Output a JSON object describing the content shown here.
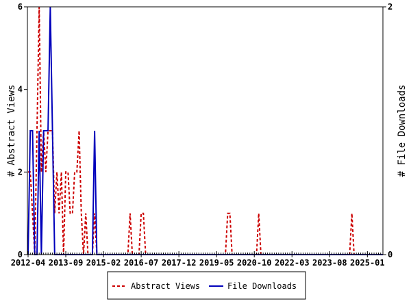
{
  "chart_data": {
    "type": "line",
    "x_start": "2012-04",
    "x_end": "2025-08",
    "x_interval": "month",
    "x_tick_labels": [
      "2012-04",
      "2013-09",
      "2015-02",
      "2016-07",
      "2017-12",
      "2019-05",
      "2020-10",
      "2022-03",
      "2023-08",
      "2025-01"
    ],
    "ylabel": "# Abstract Views",
    "ylabel_right": "# File Downloads",
    "ylim": [
      0,
      6
    ],
    "ylim_right": [
      0,
      2
    ],
    "y_ticks": [
      "0",
      "2",
      "4",
      "6"
    ],
    "y_ticks_right": [
      "0",
      "2"
    ],
    "grid": false,
    "legend_position": "bottom",
    "series": [
      {
        "name": "Abstract Views",
        "axis": "left",
        "color": "#cc0000",
        "style": "dashed",
        "values": [
          2,
          2,
          1,
          0,
          3,
          6,
          2,
          3,
          2,
          3,
          3,
          3,
          1,
          2,
          1,
          2,
          0,
          2,
          2,
          1,
          1,
          2,
          2,
          3,
          1,
          0,
          1,
          0,
          0,
          0,
          1,
          0,
          0,
          0,
          0,
          0,
          0,
          0,
          0,
          0,
          0,
          0,
          0,
          0,
          0,
          0,
          1,
          0,
          0,
          0,
          0,
          1,
          1,
          0,
          0,
          0,
          0,
          0,
          0,
          0,
          0,
          0,
          0,
          0,
          0,
          0,
          0,
          0,
          0,
          0,
          0,
          0,
          0,
          0,
          0,
          0,
          0,
          0,
          0,
          0,
          0,
          0,
          0,
          0,
          0,
          0,
          0,
          0,
          0,
          0,
          1,
          1,
          0,
          0,
          0,
          0,
          0,
          0,
          0,
          0,
          0,
          0,
          0,
          0,
          1,
          0,
          0,
          0,
          0,
          0,
          0,
          0,
          0,
          0,
          0,
          0,
          0,
          0,
          0,
          0,
          0,
          0,
          0,
          0,
          0,
          0,
          0,
          0,
          0,
          0,
          0,
          0,
          0,
          0,
          0,
          0,
          0,
          0,
          0,
          0,
          0,
          0,
          0,
          0,
          0,
          0,
          1,
          0,
          0,
          0,
          0,
          0,
          0,
          0,
          0,
          0,
          0,
          0,
          0,
          0,
          0
        ]
      },
      {
        "name": "File Downloads",
        "axis": "right",
        "color": "#0000bb",
        "style": "solid",
        "values": [
          0,
          1,
          1,
          0,
          0,
          1,
          0,
          1,
          1,
          1,
          2,
          1,
          0,
          0,
          0,
          0,
          0,
          0,
          0,
          0,
          0,
          0,
          0,
          0,
          0,
          0,
          0,
          0,
          0,
          0,
          1,
          0,
          0,
          0,
          0,
          0,
          0,
          0,
          0,
          0,
          0,
          0,
          0,
          0,
          0,
          0,
          0,
          0,
          0,
          0,
          0,
          0,
          0,
          0,
          0,
          0,
          0,
          0,
          0,
          0,
          0,
          0,
          0,
          0,
          0,
          0,
          0,
          0,
          0,
          0,
          0,
          0,
          0,
          0,
          0,
          0,
          0,
          0,
          0,
          0,
          0,
          0,
          0,
          0,
          0,
          0,
          0,
          0,
          0,
          0,
          0,
          0,
          0,
          0,
          0,
          0,
          0,
          0,
          0,
          0,
          0,
          0,
          0,
          0,
          0,
          0,
          0,
          0,
          0,
          0,
          0,
          0,
          0,
          0,
          0,
          0,
          0,
          0,
          0,
          0,
          0,
          0,
          0,
          0,
          0,
          0,
          0,
          0,
          0,
          0,
          0,
          0,
          0,
          0,
          0,
          0,
          0,
          0,
          0,
          0,
          0,
          0,
          0,
          0,
          0,
          0,
          0,
          0,
          0,
          0,
          0,
          0,
          0,
          0,
          0,
          0,
          0,
          0,
          0,
          0,
          0
        ]
      }
    ]
  }
}
